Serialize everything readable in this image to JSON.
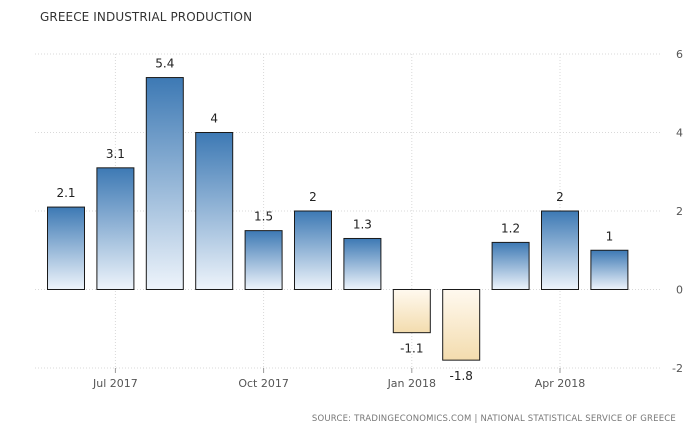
{
  "chart_data": {
    "type": "bar",
    "title": "GREECE INDUSTRIAL PRODUCTION",
    "source": "SOURCE: TRADINGECONOMICS.COM | NATIONAL STATISTICAL SERVICE OF GREECE",
    "categories": [
      "Jun 2017",
      "Jul 2017",
      "Aug 2017",
      "Sep 2017",
      "Oct 2017",
      "Nov 2017",
      "Dec 2017",
      "Jan 2018",
      "Feb 2018",
      "Mar 2018",
      "Apr 2018",
      "May 2018"
    ],
    "values": [
      2.1,
      3.1,
      5.4,
      4,
      1.5,
      2,
      1.3,
      -1.1,
      -1.8,
      1.2,
      2,
      1
    ],
    "data_labels": [
      "2.1",
      "3.1",
      "5.4",
      "4",
      "1.5",
      "2",
      "1.3",
      "-1.1",
      "-1.8",
      "1.2",
      "2",
      "1"
    ],
    "x_tick_labels": [
      "Jul 2017",
      "Oct 2017",
      "Jan 2018",
      "Apr 2018"
    ],
    "y_ticks": [
      -2,
      0,
      2,
      4,
      6
    ],
    "ylim": [
      -2,
      6
    ],
    "y_axis_side": "right",
    "grid": true,
    "colors": {
      "positive_top": "#3d79b4",
      "positive_bottom": "#eef4fb",
      "negative_top": "#fff9ef",
      "negative_bottom": "#f3dcae",
      "bar_border": "#1a1a1a",
      "grid": "#d9d9d9"
    }
  }
}
